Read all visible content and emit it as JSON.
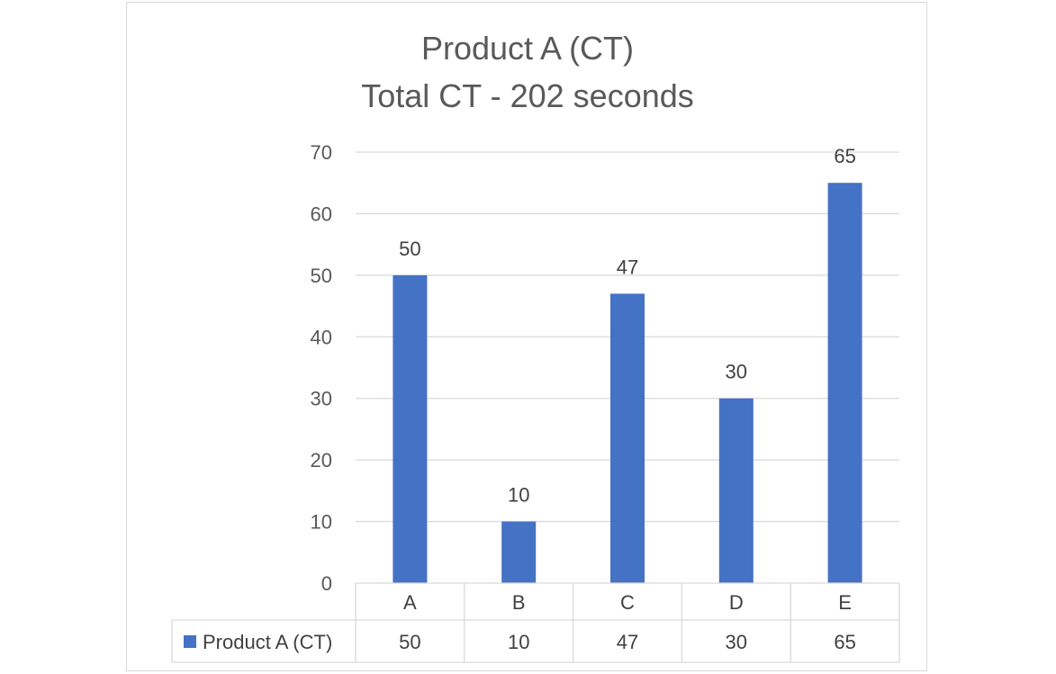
{
  "chart_data": {
    "type": "bar",
    "title": "Product A (CT)",
    "subtitle": "Total CT - 202 seconds",
    "categories": [
      "A",
      "B",
      "C",
      "D",
      "E"
    ],
    "series": [
      {
        "name": "Product A (CT)",
        "values": [
          50,
          10,
          47,
          30,
          65
        ],
        "color": "#4472c4"
      }
    ],
    "ylim": [
      0,
      70
    ],
    "yticks": [
      0,
      10,
      20,
      30,
      40,
      50,
      60,
      70
    ],
    "grid": true,
    "data_labels": true,
    "data_table": true,
    "legend": "data-table"
  }
}
